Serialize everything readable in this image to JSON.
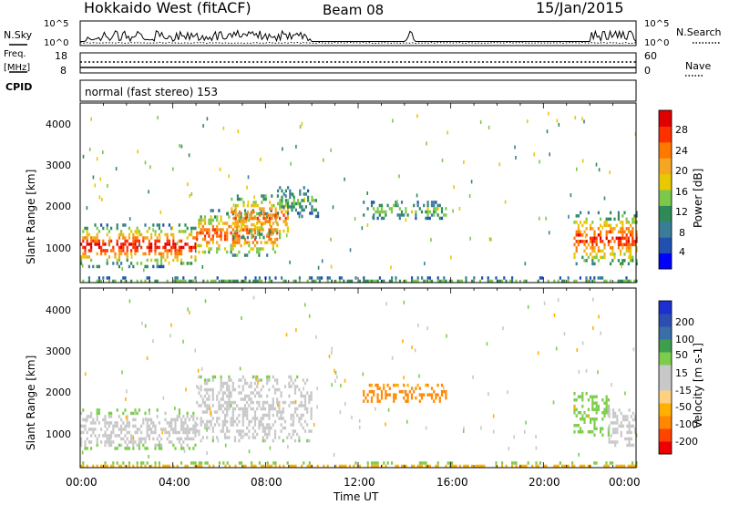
{
  "header": {
    "station": "Hokkaido West (fitACF)",
    "beam": "Beam 08",
    "date": "15/Jan/2015",
    "program": "normal (fast stereo) 153"
  },
  "left_labels": {
    "nsky": "N.Sky",
    "freq_line1": "Freq.",
    "freq_line2": "[MHz]",
    "cpid": "CPID"
  },
  "right_labels": {
    "nsearch": "N.Search",
    "nave": "Nave"
  },
  "colors": {
    "power": [
      "#0000ff",
      "#2050b0",
      "#3a7d9a",
      "#2e8b57",
      "#7cc84b",
      "#e8c800",
      "#f5a623",
      "#ff7800",
      "#ff3000",
      "#e00000"
    ],
    "velocity": [
      "#ee0000",
      "#ff4400",
      "#ff8800",
      "#ffb000",
      "#ffd080",
      "#c8c8c8",
      "#c8c8c8",
      "#7ccd4c",
      "#3e9e4e",
      "#3a6ea8",
      "#2a4fb0",
      "#1e2fd0"
    ]
  },
  "chart_data": [
    {
      "type": "line",
      "name": "noise-panel",
      "yticks_left": [
        "10^5",
        "10^0"
      ],
      "yticks_right": [
        "10^5",
        "10^0"
      ],
      "left_series": "N.Sky",
      "right_series": "N.Search"
    },
    {
      "type": "line",
      "name": "freq-panel",
      "yticks_left": [
        "18",
        "8"
      ],
      "yticks_right": [
        "60",
        "0"
      ],
      "left_series": "Freq. [MHz]",
      "right_series": "Nave"
    },
    {
      "type": "heatmap",
      "name": "power-panel",
      "title": "Power [dB]",
      "ylabel": "Slant Range [km]",
      "yticks": [
        "1000",
        "2000",
        "3000",
        "4000"
      ],
      "ylim": [
        180,
        4500
      ],
      "xlim": [
        0,
        24
      ],
      "colorbar_ticks": [
        "4",
        "8",
        "12",
        "16",
        "20",
        "24",
        "28"
      ],
      "colorbar_range": [
        0,
        30
      ],
      "regions": [
        {
          "t0": 0.0,
          "t1": 5.0,
          "r0": 600,
          "r1": 1600,
          "v_core": 27,
          "v_edge": 8
        },
        {
          "t0": 5.0,
          "t1": 8.5,
          "r0": 800,
          "r1": 1950,
          "v_core": 24,
          "v_edge": 8
        },
        {
          "t0": 6.5,
          "t1": 9.0,
          "r0": 1300,
          "r1": 2300,
          "v_core": 22,
          "v_edge": 10
        },
        {
          "t0": 8.5,
          "t1": 10.3,
          "r0": 1800,
          "r1": 2500,
          "v_core": 12,
          "v_edge": 5
        },
        {
          "t0": 12.2,
          "t1": 15.8,
          "r0": 1750,
          "r1": 2150,
          "v_core": 14,
          "v_edge": 6
        },
        {
          "t0": 21.3,
          "t1": 24.0,
          "r0": 650,
          "r1": 1900,
          "v_core": 26,
          "v_edge": 8
        },
        {
          "t0": 0.0,
          "t1": 24.0,
          "r0": 180,
          "r1": 330,
          "v_core": 12,
          "v_edge": 6
        }
      ]
    },
    {
      "type": "heatmap",
      "name": "velocity-panel",
      "title": "Velocity [m s-1]",
      "ylabel": "Slant Range [km]",
      "yticks": [
        "1000",
        "2000",
        "3000",
        "4000"
      ],
      "ylim": [
        180,
        4500
      ],
      "xlim": [
        0,
        24
      ],
      "xticks": [
        "00:00",
        "04:00",
        "08:00",
        "12:00",
        "16:00",
        "20:00",
        "00:00"
      ],
      "xlabel": "Time UT",
      "colorbar_ticks": [
        "-200",
        "-100",
        "-50",
        "-15",
        "15",
        "50",
        "100",
        "200"
      ],
      "regions": [
        {
          "t0": 0.0,
          "t1": 5.0,
          "r0": 650,
          "r1": 1600,
          "v_core": -5,
          "v_edge": 20
        },
        {
          "t0": 5.0,
          "t1": 10.0,
          "r0": 800,
          "r1": 2400,
          "v_core": 0,
          "v_edge": 15
        },
        {
          "t0": 12.2,
          "t1": 15.8,
          "r0": 1750,
          "r1": 2200,
          "v_core": -70,
          "v_edge": -40
        },
        {
          "t0": 21.3,
          "t1": 22.8,
          "r0": 1000,
          "r1": 2000,
          "v_core": 40,
          "v_edge": 30
        },
        {
          "t0": 22.8,
          "t1": 24.0,
          "r0": 700,
          "r1": 1600,
          "v_core": 0,
          "v_edge": 10
        },
        {
          "t0": 0.0,
          "t1": 24.0,
          "r0": 180,
          "r1": 330,
          "v_core": -30,
          "v_edge": 20
        }
      ]
    }
  ]
}
